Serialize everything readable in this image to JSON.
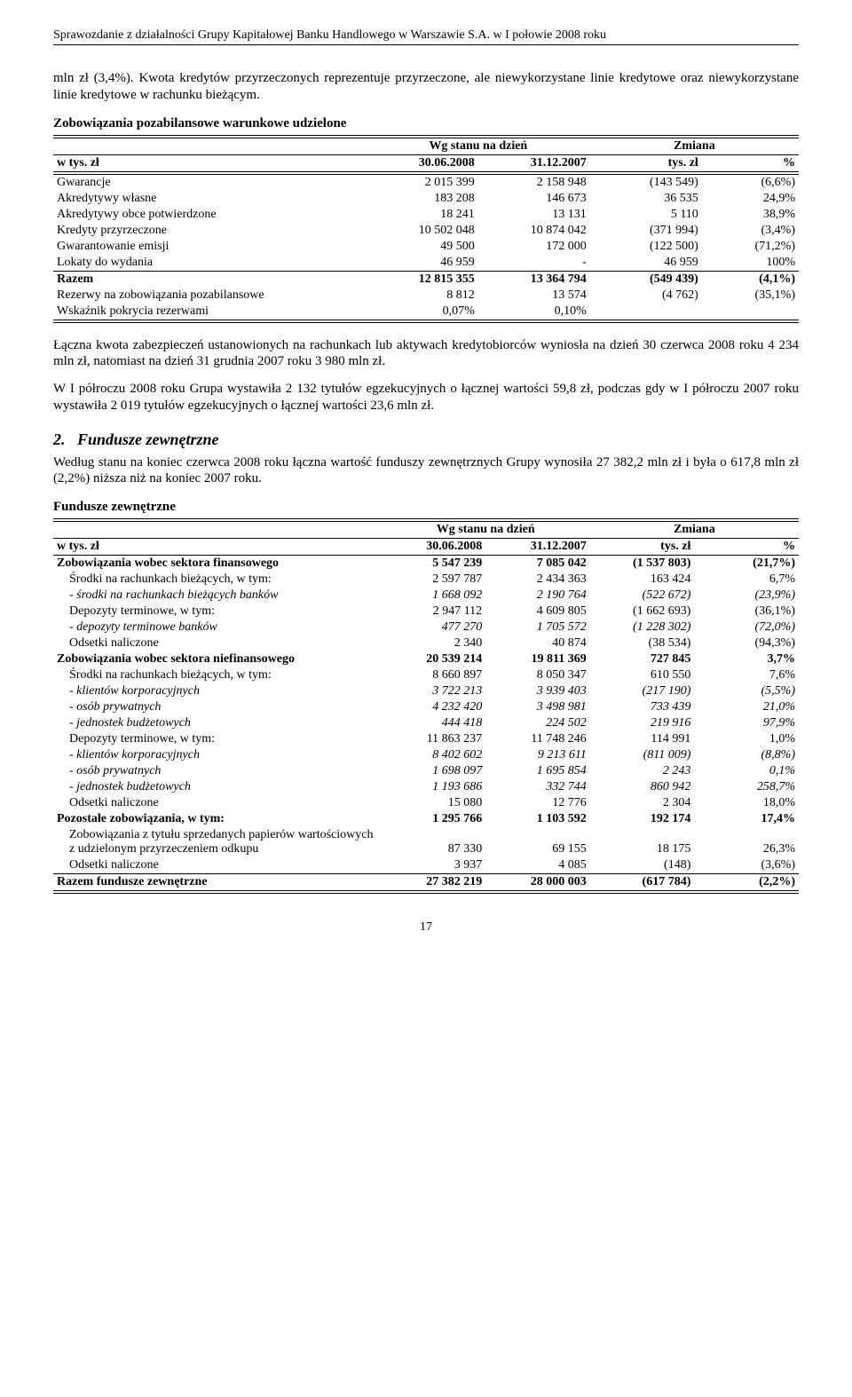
{
  "header": "Sprawozdanie z działalności Grupy Kapitałowej Banku Handlowego w Warszawie S.A. w I połowie 2008 roku",
  "intro": "mln zł (3,4%). Kwota kredytów przyrzeczonych reprezentuje przyrzeczone, ale niewykorzystane linie kredytowe oraz niewykorzystane linie kredytowe w rachunku bieżącym.",
  "t1": {
    "title": "Zobowiązania pozabilansowe warunkowe udzielone",
    "h_stan": "Wg stanu na dzień",
    "h_zmiana": "Zmiana",
    "c_unit": "w tys. zł",
    "c_d1": "30.06.2008",
    "c_d2": "31.12.2007",
    "c_tys": "tys. zł",
    "c_pct": "%",
    "rows": [
      {
        "l": "Gwarancje",
        "a": "2 015 399",
        "b": "2 158 948",
        "c": "(143 549)",
        "d": "(6,6%)"
      },
      {
        "l": "Akredytywy własne",
        "a": "183 208",
        "b": "146 673",
        "c": "36 535",
        "d": "24,9%"
      },
      {
        "l": "Akredytywy obce potwierdzone",
        "a": "18 241",
        "b": "13 131",
        "c": "5 110",
        "d": "38,9%"
      },
      {
        "l": "Kredyty przyrzeczone",
        "a": "10 502 048",
        "b": "10 874 042",
        "c": "(371 994)",
        "d": "(3,4%)"
      },
      {
        "l": "Gwarantowanie emisji",
        "a": "49 500",
        "b": "172 000",
        "c": "(122 500)",
        "d": "(71,2%)"
      },
      {
        "l": "Lokaty do wydania",
        "a": "46 959",
        "b": "-",
        "c": "46 959",
        "d": "100%"
      }
    ],
    "razem": {
      "l": "Razem",
      "a": "12 815 355",
      "b": "13 364 794",
      "c": "(549 439)",
      "d": "(4,1%)"
    },
    "rez": {
      "l": "Rezerwy na zobowiązania pozabilansowe",
      "a": "8 812",
      "b": "13 574",
      "c": "(4 762)",
      "d": "(35,1%)"
    },
    "wsk": {
      "l": "Wskaźnik pokrycia rezerwami",
      "a": "0,07%",
      "b": "0,10%",
      "c": "",
      "d": ""
    }
  },
  "p1": "Łączna kwota zabezpieczeń ustanowionych na rachunkach lub aktywach kredytobiorców wyniosła na dzień 30 czerwca 2008 roku 4 234 mln zł, natomiast na dzień 31 grudnia 2007 roku 3 980 mln zł.",
  "p2": "W I półroczu 2008 roku Grupa wystawiła 2 132 tytułów egzekucyjnych o łącznej wartości 59,8 zł, podczas gdy w I półroczu 2007 roku wystawiła 2 019 tytułów egzekucyjnych o łącznej wartości 23,6 mln zł.",
  "sec2_num": "2.",
  "sec2_title": "Fundusze zewnętrzne",
  "p3": "Według stanu na koniec czerwca 2008 roku łączna wartość funduszy zewnętrznych Grupy wynosiła 27 382,2 mln zł i była o 617,8 mln zł (2,2%) niższa niż na koniec 2007 roku.",
  "t2": {
    "title": "Fundusze zewnętrzne",
    "rows": [
      {
        "l": "Zobowiązania wobec sektora finansowego",
        "a": "5 547 239",
        "b": "7 085 042",
        "c": "(1 537 803)",
        "d": "(21,7%)",
        "bold": true
      },
      {
        "l": "Środki na rachunkach bieżących, w tym:",
        "a": "2 597 787",
        "b": "2 434 363",
        "c": "163 424",
        "d": "6,7%",
        "ind": 1
      },
      {
        "l": "- środki na rachunkach bieżących banków",
        "a": "1 668 092",
        "b": "2 190 764",
        "c": "(522 672)",
        "d": "(23,9%)",
        "it": true,
        "ind": 1
      },
      {
        "l": "Depozyty terminowe, w tym:",
        "a": "2 947 112",
        "b": "4 609 805",
        "c": "(1 662 693)",
        "d": "(36,1%)",
        "ind": 1
      },
      {
        "l": "- depozyty terminowe banków",
        "a": "477 270",
        "b": "1 705 572",
        "c": "(1 228 302)",
        "d": "(72,0%)",
        "it": true,
        "ind": 1
      },
      {
        "l": "Odsetki naliczone",
        "a": "2 340",
        "b": "40 874",
        "c": "(38 534)",
        "d": "(94,3%)",
        "ind": 1
      },
      {
        "l": "Zobowiązania wobec sektora niefinansowego",
        "a": "20 539 214",
        "b": "19 811 369",
        "c": "727 845",
        "d": "3,7%",
        "bold": true
      },
      {
        "l": "Środki na rachunkach bieżących, w tym:",
        "a": "8 660 897",
        "b": "8 050 347",
        "c": "610 550",
        "d": "7,6%",
        "ind": 1
      },
      {
        "l": "- klientów korporacyjnych",
        "a": "3 722 213",
        "b": "3 939 403",
        "c": "(217 190)",
        "d": "(5,5%)",
        "it": true,
        "ind": 1
      },
      {
        "l": "- osób prywatnych",
        "a": "4 232 420",
        "b": "3 498 981",
        "c": "733 439",
        "d": "21,0%",
        "it": true,
        "ind": 1
      },
      {
        "l": "- jednostek budżetowych",
        "a": "444 418",
        "b": "224 502",
        "c": "219 916",
        "d": "97,9%",
        "it": true,
        "ind": 1
      },
      {
        "l": "Depozyty terminowe, w tym:",
        "a": "11 863 237",
        "b": "11 748 246",
        "c": "114 991",
        "d": "1,0%",
        "ind": 1
      },
      {
        "l": "- klientów korporacyjnych",
        "a": "8 402 602",
        "b": "9 213 611",
        "c": "(811 009)",
        "d": "(8,8%)",
        "it": true,
        "ind": 1
      },
      {
        "l": "- osób prywatnych",
        "a": "1 698 097",
        "b": "1 695 854",
        "c": "2 243",
        "d": "0,1%",
        "it": true,
        "ind": 1
      },
      {
        "l": "- jednostek budżetowych",
        "a": "1 193 686",
        "b": "332 744",
        "c": "860 942",
        "d": "258,7%",
        "it": true,
        "ind": 1
      },
      {
        "l": "Odsetki naliczone",
        "a": "15 080",
        "b": "12 776",
        "c": "2 304",
        "d": "18,0%",
        "ind": 1
      },
      {
        "l": "Pozostałe zobowiązania, w tym:",
        "a": "1 295 766",
        "b": "1 103 592",
        "c": "192 174",
        "d": "17,4%",
        "bold": true
      },
      {
        "l": "Zobowiązania z tytułu sprzedanych papierów wartościowych z udzielonym przyrzeczeniem odkupu",
        "a": "87 330",
        "b": "69 155",
        "c": "18 175",
        "d": "26,3%",
        "ind": 1
      },
      {
        "l": "Odsetki naliczone",
        "a": "3 937",
        "b": "4 085",
        "c": "(148)",
        "d": "(3,6%)",
        "ind": 1
      }
    ],
    "razem": {
      "l": "Razem fundusze zewnętrzne",
      "a": "27 382 219",
      "b": "28 000 003",
      "c": "(617 784)",
      "d": "(2,2%)"
    }
  },
  "page": "17"
}
